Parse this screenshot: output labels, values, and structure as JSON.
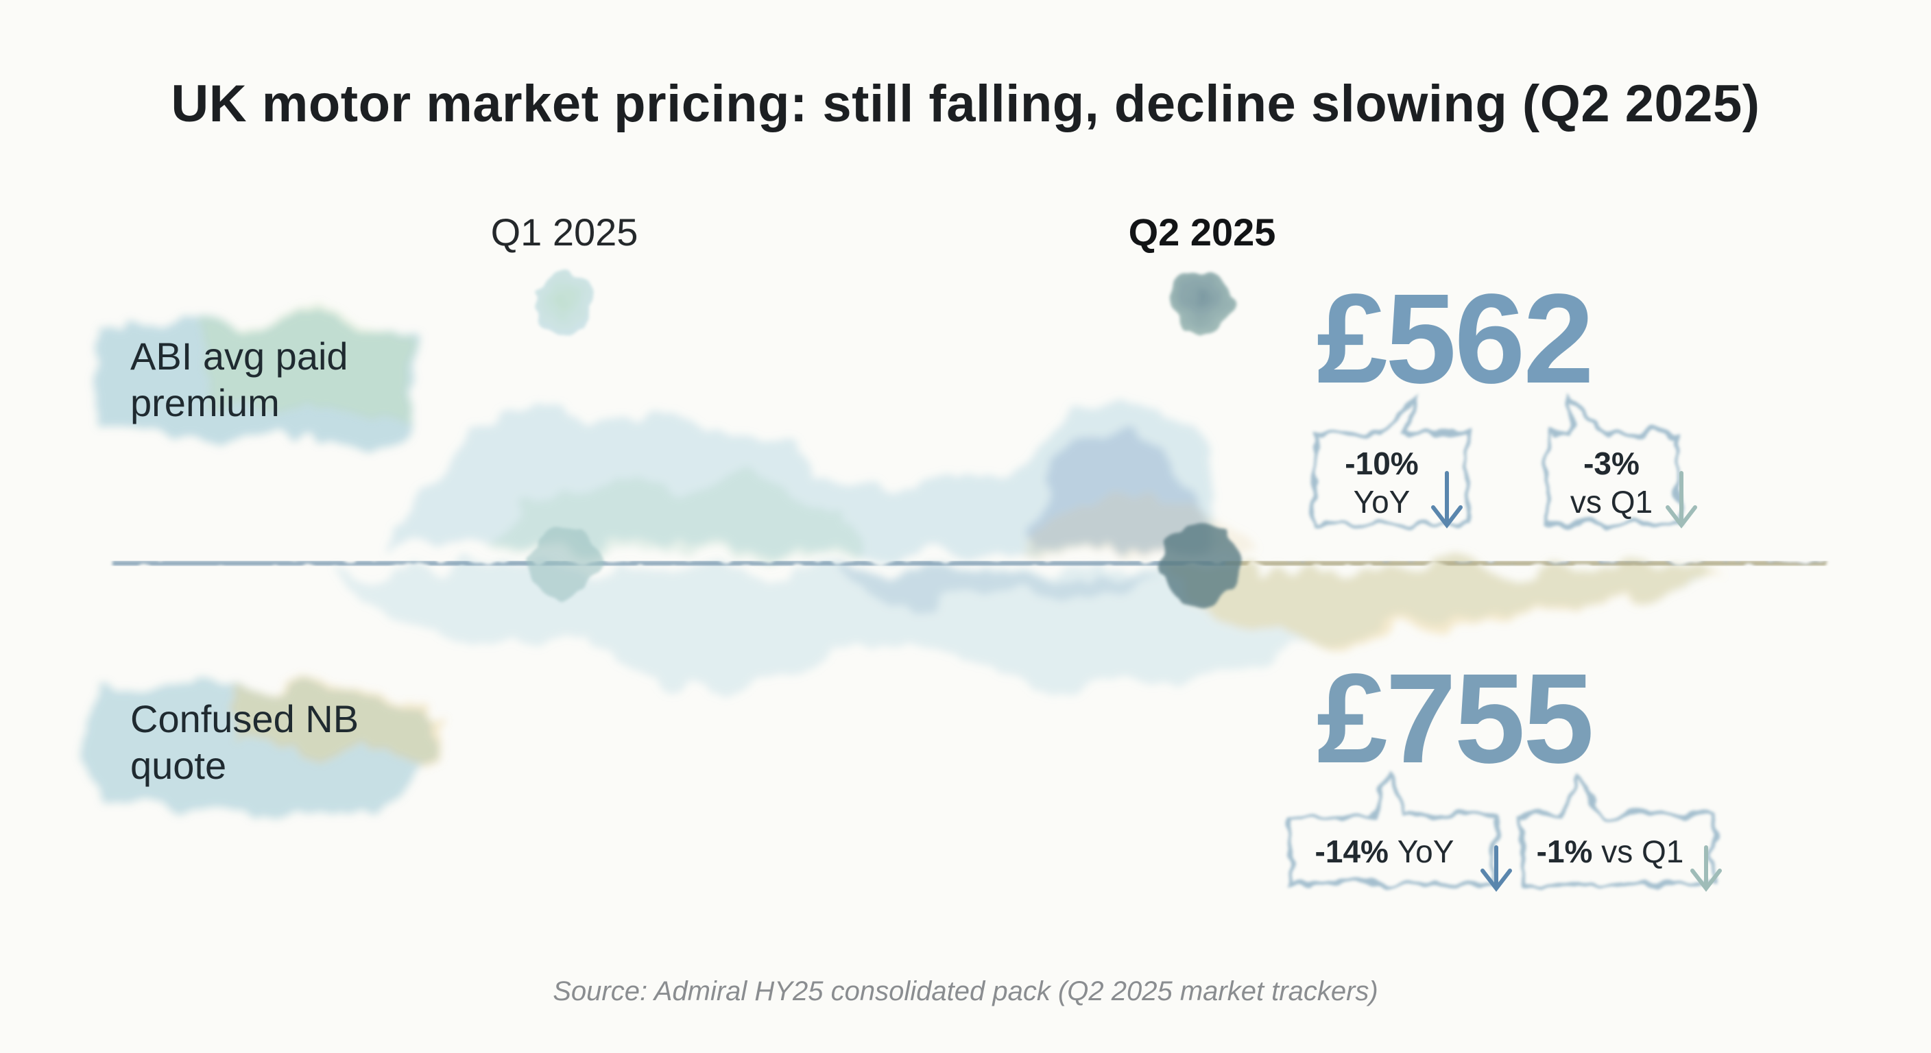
{
  "chart_data": {
    "type": "timeline-comparison",
    "title": "UK motor market pricing: still falling, decline slowing (Q2 2025)",
    "periods": [
      "Q1 2025",
      "Q2 2025"
    ],
    "highlighted_period": "Q2 2025",
    "series": [
      {
        "name": "ABI avg paid premium",
        "value_label": "£562",
        "value": 562,
        "changes": [
          {
            "pct": "-10%",
            "label": "YoY"
          },
          {
            "pct": "-3%",
            "label": "vs Q1"
          }
        ]
      },
      {
        "name": "Confused NB quote",
        "value_label": "£755",
        "value": 755,
        "changes": [
          {
            "pct": "-14%",
            "label": "YoY"
          },
          {
            "pct": "-1%",
            "label": "vs Q1"
          }
        ]
      }
    ],
    "source": "Source: Admiral HY25 consolidated pack (Q2 2025 market trackers)"
  },
  "colors": {
    "blue": "#5f8fb3",
    "teal": "#7fb7c9",
    "green": "#a9cfb8",
    "gold": "#e8c878",
    "ink": "#1c1f22"
  }
}
